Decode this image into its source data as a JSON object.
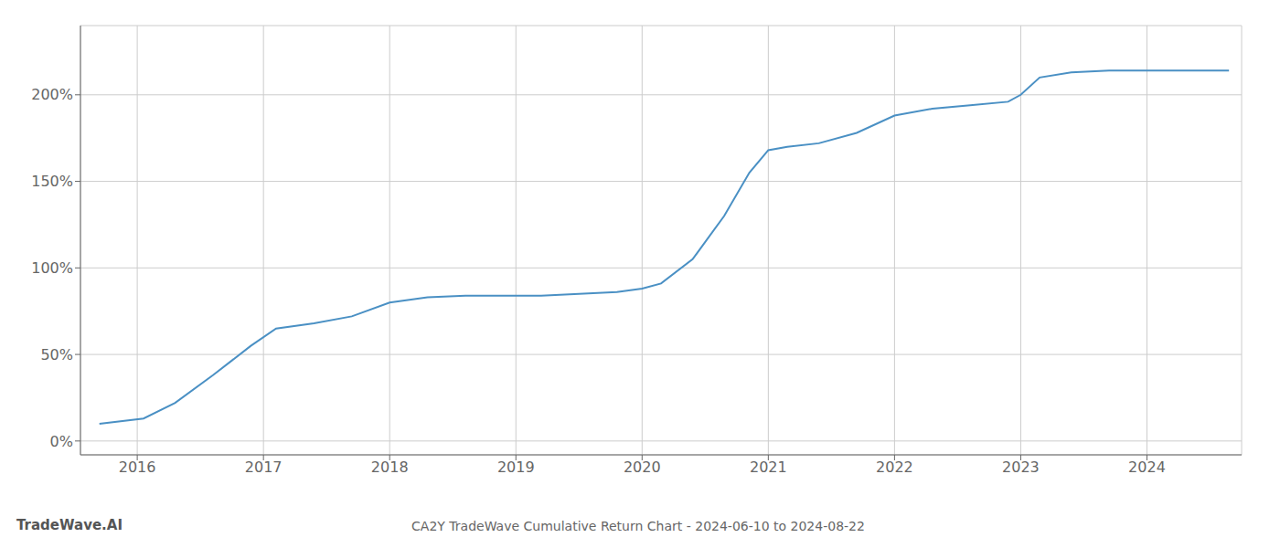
{
  "chart_data": {
    "type": "line",
    "title": "CA2Y TradeWave Cumulative Return Chart - 2024-06-10 to 2024-08-22",
    "annotations": [
      "TradeWave.AI"
    ],
    "x": [
      2015.7,
      2016.05,
      2016.3,
      2016.6,
      2016.9,
      2017.1,
      2017.4,
      2017.7,
      2018.0,
      2018.3,
      2018.6,
      2018.9,
      2019.2,
      2019.5,
      2019.8,
      2020.0,
      2020.15,
      2020.4,
      2020.65,
      2020.85,
      2021.0,
      2021.15,
      2021.4,
      2021.7,
      2022.0,
      2022.3,
      2022.6,
      2022.9,
      2023.0,
      2023.15,
      2023.4,
      2023.7,
      2024.0,
      2024.65
    ],
    "values": [
      10,
      13,
      22,
      38,
      55,
      65,
      68,
      72,
      80,
      83,
      84,
      84,
      84,
      85,
      86,
      88,
      91,
      105,
      130,
      155,
      168,
      170,
      172,
      178,
      188,
      192,
      194,
      196,
      200,
      210,
      213,
      214,
      214,
      214
    ],
    "color": "#4a90c4",
    "xlim": [
      2015.55,
      2024.75
    ],
    "ylim": [
      -8,
      240
    ],
    "xticks": [
      2016,
      2017,
      2018,
      2019,
      2020,
      2021,
      2022,
      2023,
      2024
    ],
    "yticks": [
      {
        "value": 0,
        "label": "0%"
      },
      {
        "value": 50,
        "label": "50%"
      },
      {
        "value": 100,
        "label": "100%"
      },
      {
        "value": 150,
        "label": "150%"
      },
      {
        "value": 200,
        "label": "200%"
      }
    ],
    "grid": true
  }
}
